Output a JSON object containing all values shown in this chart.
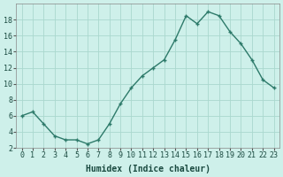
{
  "title": "",
  "xlabel": "Humidex (Indice chaleur)",
  "x": [
    0,
    1,
    2,
    3,
    4,
    5,
    6,
    7,
    8,
    9,
    10,
    11,
    12,
    13,
    14,
    15,
    16,
    17,
    18,
    19,
    20,
    21,
    22,
    23
  ],
  "y": [
    6.0,
    6.5,
    5.0,
    3.5,
    3.0,
    3.0,
    2.5,
    3.0,
    5.0,
    7.5,
    9.5,
    11.0,
    12.0,
    13.0,
    15.5,
    18.5,
    17.5,
    19.0,
    18.5,
    16.5,
    15.0,
    13.0,
    10.5,
    9.5
  ],
  "line_color": "#2d7a6a",
  "marker_color": "#2d7a6a",
  "bg_color": "#cef0ea",
  "grid_color": "#aad8ce",
  "ylim": [
    2,
    20
  ],
  "yticks": [
    2,
    4,
    6,
    8,
    10,
    12,
    14,
    16,
    18
  ],
  "xticks": [
    0,
    1,
    2,
    3,
    4,
    5,
    6,
    7,
    8,
    9,
    10,
    11,
    12,
    13,
    14,
    15,
    16,
    17,
    18,
    19,
    20,
    21,
    22,
    23
  ],
  "xlabel_fontsize": 7,
  "tick_fontsize": 6,
  "marker_size": 2.5,
  "line_width": 1.0
}
